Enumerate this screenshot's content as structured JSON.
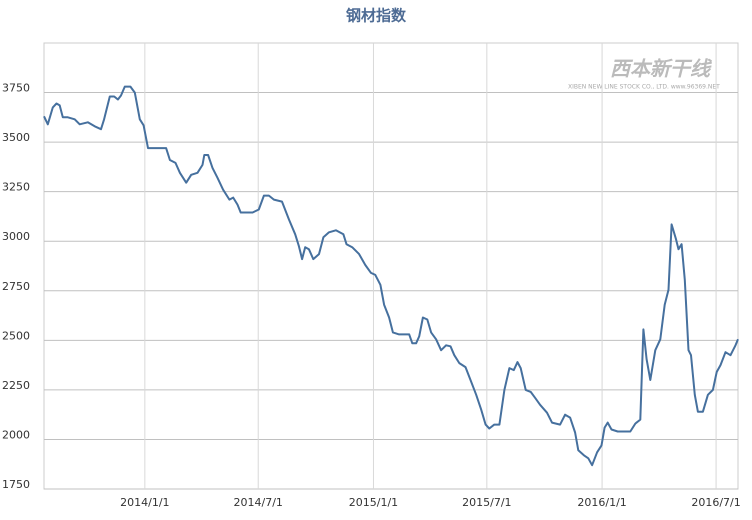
{
  "chart_data": {
    "type": "line",
    "title": "钢材指数",
    "watermark": {
      "logo": "西本新干线",
      "text": "XIBEN NEW LINE STOCK CO., LTD. www.96369.NET"
    },
    "x": [
      "2013/7/24",
      "2013/7/30",
      "2013/8/7",
      "2013/8/13",
      "2013/8/18",
      "2013/8/23",
      "2013/8/31",
      "2013/9/11",
      "2013/9/19",
      "2013/10/2",
      "2013/10/13",
      "2013/10/23",
      "2013/10/28",
      "2013/11/6",
      "2013/11/13",
      "2013/11/19",
      "2013/11/24",
      "2013/11/30",
      "2013/12/9",
      "2013/12/16",
      "2013/12/24",
      "2013/12/30",
      "2014/1/6",
      "2014/1/17",
      "2014/2/4",
      "2014/2/10",
      "2014/2/19",
      "2014/2/26",
      "2014/3/8",
      "2014/3/16",
      "2014/3/26",
      "2014/4/3",
      "2014/4/6",
      "2014/4/12",
      "2014/4/19",
      "2014/4/27",
      "2014/5/6",
      "2014/5/16",
      "2014/5/22",
      "2014/5/29",
      "2014/6/3",
      "2014/6/22",
      "2014/7/2",
      "2014/7/10",
      "2014/7/18",
      "2014/7/26",
      "2014/8/8",
      "2014/8/19",
      "2014/8/29",
      "2014/9/4",
      "2014/9/9",
      "2014/9/14",
      "2014/9/20",
      "2014/9/27",
      "2014/10/6",
      "2014/10/13",
      "2014/10/22",
      "2014/11/2",
      "2014/11/14",
      "2014/11/19",
      "2014/11/28",
      "2014/12/9",
      "2014/12/19",
      "2014/12/28",
      "2015/1/4",
      "2015/1/12",
      "2015/1/18",
      "2015/1/26",
      "2015/2/1",
      "2015/2/11",
      "2015/2/27",
      "2015/3/4",
      "2015/3/10",
      "2015/3/15",
      "2015/3/21",
      "2015/3/28",
      "2015/4/3",
      "2015/4/11",
      "2015/4/19",
      "2015/4/27",
      "2015/5/4",
      "2015/5/10",
      "2015/5/18",
      "2015/5/28",
      "2015/6/5",
      "2015/6/14",
      "2015/6/22",
      "2015/6/29",
      "2015/7/5",
      "2015/7/13",
      "2015/7/21",
      "2015/7/29",
      "2015/8/6",
      "2015/8/13",
      "2015/8/19",
      "2015/8/24",
      "2015/9/1",
      "2015/9/9",
      "2015/9/16",
      "2015/9/24",
      "2015/10/5",
      "2015/10/13",
      "2015/10/26",
      "2015/11/3",
      "2015/11/11",
      "2015/11/19",
      "2015/11/24",
      "2015/12/3",
      "2015/12/10",
      "2015/12/16",
      "2015/12/24",
      "2015/12/31",
      "2016/1/5",
      "2016/1/10",
      "2016/1/16",
      "2016/1/26",
      "2016/2/15",
      "2016/2/23",
      "2016/3/2",
      "2016/3/7",
      "2016/3/12",
      "2016/3/18",
      "2016/3/26",
      "2016/4/3",
      "2016/4/10",
      "2016/4/16",
      "2016/4/21",
      "2016/4/28",
      "2016/5/2",
      "2016/5/7",
      "2016/5/12",
      "2016/5/18",
      "2016/5/22",
      "2016/5/28",
      "2016/6/2",
      "2016/6/10",
      "2016/6/18",
      "2016/6/26",
      "2016/7/2",
      "2016/7/8",
      "2016/7/16",
      "2016/7/24",
      "2016/8/1",
      "2016/8/5"
    ],
    "series": [
      {
        "name": "钢材指数",
        "color": "#46709e",
        "values": [
          3630,
          3590,
          3675,
          3695,
          3685,
          3625,
          3625,
          3615,
          3590,
          3600,
          3580,
          3565,
          3615,
          3730,
          3730,
          3715,
          3735,
          3780,
          3780,
          3750,
          3615,
          3585,
          3470,
          3470,
          3470,
          3410,
          3395,
          3345,
          3295,
          3335,
          3345,
          3385,
          3435,
          3435,
          3370,
          3320,
          3260,
          3210,
          3220,
          3185,
          3145,
          3145,
          3160,
          3230,
          3230,
          3210,
          3200,
          3110,
          3035,
          2975,
          2910,
          2970,
          2960,
          2910,
          2935,
          3020,
          3045,
          3055,
          3035,
          2985,
          2970,
          2935,
          2880,
          2840,
          2830,
          2780,
          2680,
          2615,
          2540,
          2530,
          2530,
          2485,
          2485,
          2520,
          2615,
          2605,
          2540,
          2505,
          2450,
          2475,
          2470,
          2425,
          2385,
          2365,
          2300,
          2225,
          2150,
          2075,
          2055,
          2075,
          2075,
          2250,
          2360,
          2350,
          2390,
          2360,
          2250,
          2240,
          2210,
          2175,
          2135,
          2085,
          2075,
          2125,
          2110,
          2035,
          1945,
          1920,
          1905,
          1870,
          1935,
          1970,
          2060,
          2085,
          2050,
          2040,
          2040,
          2080,
          2100,
          2555,
          2405,
          2300,
          2450,
          2505,
          2680,
          2755,
          3085,
          3010,
          2960,
          2985,
          2805,
          2450,
          2425,
          2225,
          2140,
          2140,
          2225,
          2250,
          2340,
          2375,
          2440,
          2425,
          2475,
          2505
        ]
      }
    ],
    "xlim": [
      "2013/7/24",
      "2016/8/5"
    ],
    "xticks": [
      "2014/1/1",
      "2014/7/1",
      "2015/1/1",
      "2015/7/1",
      "2016/1/1",
      "2016/7/1"
    ],
    "ylim": [
      1750,
      4000
    ],
    "yticks": [
      1750,
      2000,
      2250,
      2500,
      2750,
      3000,
      3250,
      3500,
      3750
    ],
    "grid": true
  }
}
